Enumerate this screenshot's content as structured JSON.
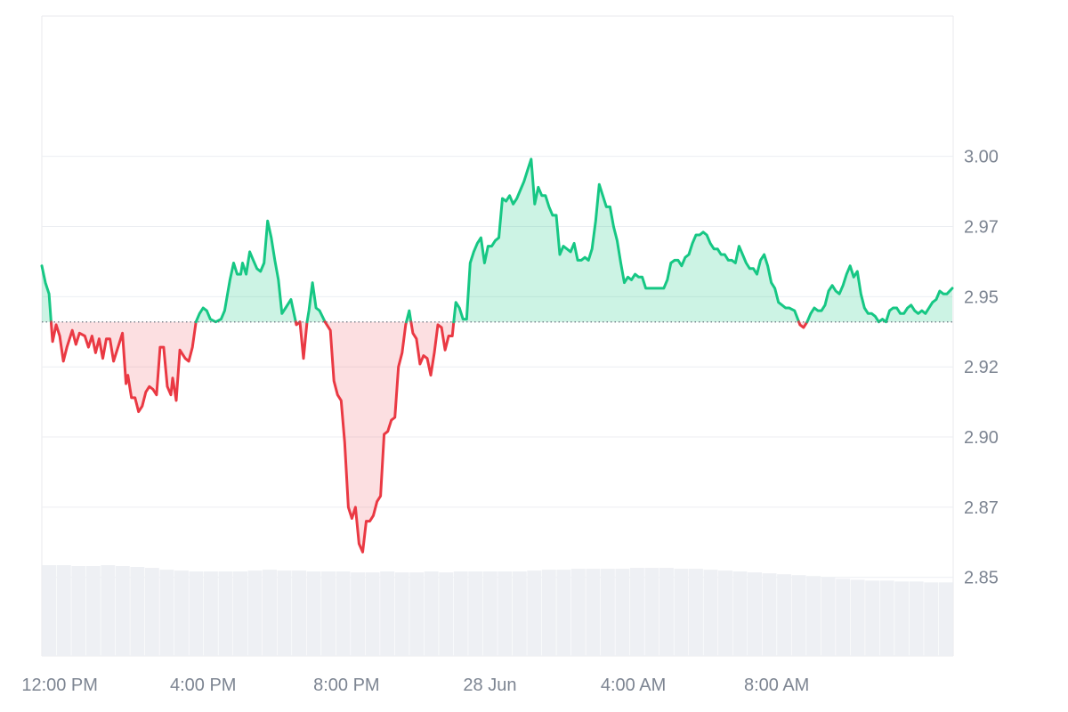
{
  "chart_data": {
    "type": "area",
    "baseline": 2.941,
    "ylim": [
      2.822,
      3.05
    ],
    "yticks": [
      3.0,
      2.975,
      2.95,
      2.925,
      2.9,
      2.875,
      2.85
    ],
    "ytick_labels": [
      "3.00",
      "2.97",
      "2.95",
      "2.92",
      "2.90",
      "2.87",
      "2.85"
    ],
    "x_range_hours": [
      -0.5,
      24.9
    ],
    "xticks": [
      {
        "at": 0,
        "label": "12:00 PM"
      },
      {
        "at": 4,
        "label": "4:00 PM"
      },
      {
        "at": 8,
        "label": "8:00 PM"
      },
      {
        "at": 12,
        "label": "28 Jun"
      },
      {
        "at": 16,
        "label": "4:00 AM"
      },
      {
        "at": 20,
        "label": "8:00 AM"
      }
    ],
    "colors": {
      "up": "#16c784",
      "down": "#ea3943",
      "up_fill": "rgba(22,199,132,0.22)",
      "down_fill": "rgba(234,57,67,0.16)"
    },
    "series": [
      {
        "values": [
          [
            -0.5,
            2.961
          ],
          [
            -0.4,
            2.955
          ],
          [
            -0.3,
            2.951
          ],
          [
            -0.2,
            2.934
          ],
          [
            -0.1,
            2.94
          ],
          [
            0.0,
            2.936
          ],
          [
            0.1,
            2.927
          ],
          [
            0.2,
            2.932
          ],
          [
            0.35,
            2.938
          ],
          [
            0.45,
            2.933
          ],
          [
            0.55,
            2.937
          ],
          [
            0.7,
            2.936
          ],
          [
            0.8,
            2.932
          ],
          [
            0.9,
            2.936
          ],
          [
            1.0,
            2.93
          ],
          [
            1.1,
            2.935
          ],
          [
            1.2,
            2.928
          ],
          [
            1.3,
            2.935
          ],
          [
            1.4,
            2.935
          ],
          [
            1.5,
            2.927
          ],
          [
            1.6,
            2.931
          ],
          [
            1.75,
            2.937
          ],
          [
            1.85,
            2.919
          ],
          [
            1.9,
            2.922
          ],
          [
            2.0,
            2.914
          ],
          [
            2.1,
            2.914
          ],
          [
            2.2,
            2.909
          ],
          [
            2.3,
            2.911
          ],
          [
            2.4,
            2.916
          ],
          [
            2.5,
            2.918
          ],
          [
            2.6,
            2.917
          ],
          [
            2.7,
            2.915
          ],
          [
            2.8,
            2.932
          ],
          [
            2.9,
            2.932
          ],
          [
            3.0,
            2.918
          ],
          [
            3.1,
            2.915
          ],
          [
            3.15,
            2.921
          ],
          [
            3.25,
            2.913
          ],
          [
            3.35,
            2.931
          ],
          [
            3.5,
            2.928
          ],
          [
            3.6,
            2.927
          ],
          [
            3.7,
            2.932
          ],
          [
            3.8,
            2.941
          ],
          [
            3.9,
            2.944
          ],
          [
            4.0,
            2.946
          ],
          [
            4.1,
            2.945
          ],
          [
            4.2,
            2.942
          ],
          [
            4.35,
            2.941
          ],
          [
            4.5,
            2.942
          ],
          [
            4.6,
            2.945
          ],
          [
            4.75,
            2.956
          ],
          [
            4.85,
            2.962
          ],
          [
            4.95,
            2.958
          ],
          [
            5.05,
            2.958
          ],
          [
            5.1,
            2.962
          ],
          [
            5.2,
            2.958
          ],
          [
            5.3,
            2.966
          ],
          [
            5.4,
            2.963
          ],
          [
            5.5,
            2.96
          ],
          [
            5.6,
            2.959
          ],
          [
            5.7,
            2.962
          ],
          [
            5.8,
            2.977
          ],
          [
            5.9,
            2.971
          ],
          [
            6.0,
            2.963
          ],
          [
            6.1,
            2.956
          ],
          [
            6.2,
            2.944
          ],
          [
            6.3,
            2.946
          ],
          [
            6.45,
            2.949
          ],
          [
            6.6,
            2.94
          ],
          [
            6.7,
            2.941
          ],
          [
            6.8,
            2.928
          ],
          [
            6.9,
            2.941
          ],
          [
            6.95,
            2.945
          ],
          [
            7.05,
            2.955
          ],
          [
            7.15,
            2.946
          ],
          [
            7.25,
            2.945
          ],
          [
            7.4,
            2.941
          ],
          [
            7.55,
            2.938
          ],
          [
            7.65,
            2.92
          ],
          [
            7.75,
            2.915
          ],
          [
            7.85,
            2.913
          ],
          [
            7.95,
            2.898
          ],
          [
            8.05,
            2.875
          ],
          [
            8.15,
            2.871
          ],
          [
            8.25,
            2.875
          ],
          [
            8.35,
            2.862
          ],
          [
            8.45,
            2.859
          ],
          [
            8.55,
            2.87
          ],
          [
            8.65,
            2.87
          ],
          [
            8.75,
            2.872
          ],
          [
            8.85,
            2.877
          ],
          [
            8.95,
            2.879
          ],
          [
            9.05,
            2.901
          ],
          [
            9.15,
            2.902
          ],
          [
            9.25,
            2.906
          ],
          [
            9.35,
            2.907
          ],
          [
            9.45,
            2.925
          ],
          [
            9.55,
            2.93
          ],
          [
            9.65,
            2.94
          ],
          [
            9.75,
            2.945
          ],
          [
            9.85,
            2.937
          ],
          [
            9.95,
            2.935
          ],
          [
            10.05,
            2.926
          ],
          [
            10.15,
            2.929
          ],
          [
            10.25,
            2.928
          ],
          [
            10.35,
            2.922
          ],
          [
            10.45,
            2.93
          ],
          [
            10.55,
            2.94
          ],
          [
            10.65,
            2.939
          ],
          [
            10.75,
            2.931
          ],
          [
            10.85,
            2.936
          ],
          [
            10.95,
            2.936
          ],
          [
            11.05,
            2.948
          ],
          [
            11.15,
            2.946
          ],
          [
            11.25,
            2.942
          ],
          [
            11.35,
            2.942
          ],
          [
            11.45,
            2.962
          ],
          [
            11.55,
            2.966
          ],
          [
            11.65,
            2.969
          ],
          [
            11.75,
            2.971
          ],
          [
            11.85,
            2.962
          ],
          [
            11.95,
            2.968
          ],
          [
            12.05,
            2.968
          ],
          [
            12.15,
            2.97
          ],
          [
            12.25,
            2.971
          ],
          [
            12.35,
            2.985
          ],
          [
            12.45,
            2.984
          ],
          [
            12.55,
            2.986
          ],
          [
            12.65,
            2.983
          ],
          [
            12.75,
            2.985
          ],
          [
            12.85,
            2.988
          ],
          [
            12.95,
            2.991
          ],
          [
            13.05,
            2.995
          ],
          [
            13.15,
            2.999
          ],
          [
            13.25,
            2.983
          ],
          [
            13.35,
            2.989
          ],
          [
            13.45,
            2.986
          ],
          [
            13.55,
            2.986
          ],
          [
            13.65,
            2.982
          ],
          [
            13.75,
            2.979
          ],
          [
            13.85,
            2.979
          ],
          [
            13.95,
            2.965
          ],
          [
            14.05,
            2.968
          ],
          [
            14.15,
            2.967
          ],
          [
            14.25,
            2.966
          ],
          [
            14.35,
            2.969
          ],
          [
            14.45,
            2.963
          ],
          [
            14.55,
            2.963
          ],
          [
            14.65,
            2.964
          ],
          [
            14.75,
            2.963
          ],
          [
            14.85,
            2.967
          ],
          [
            14.95,
            2.977
          ],
          [
            15.05,
            2.99
          ],
          [
            15.15,
            2.986
          ],
          [
            15.25,
            2.982
          ],
          [
            15.35,
            2.982
          ],
          [
            15.45,
            2.975
          ],
          [
            15.55,
            2.97
          ],
          [
            15.65,
            2.962
          ],
          [
            15.75,
            2.955
          ],
          [
            15.85,
            2.957
          ],
          [
            15.95,
            2.956
          ],
          [
            16.05,
            2.958
          ],
          [
            16.15,
            2.957
          ],
          [
            16.25,
            2.957
          ],
          [
            16.35,
            2.953
          ],
          [
            16.45,
            2.953
          ],
          [
            16.55,
            2.953
          ],
          [
            16.65,
            2.953
          ],
          [
            16.75,
            2.953
          ],
          [
            16.85,
            2.953
          ],
          [
            16.95,
            2.956
          ],
          [
            17.05,
            2.962
          ],
          [
            17.15,
            2.963
          ],
          [
            17.25,
            2.963
          ],
          [
            17.35,
            2.961
          ],
          [
            17.45,
            2.964
          ],
          [
            17.55,
            2.965
          ],
          [
            17.65,
            2.969
          ],
          [
            17.75,
            2.972
          ],
          [
            17.85,
            2.972
          ],
          [
            17.95,
            2.973
          ],
          [
            18.05,
            2.972
          ],
          [
            18.15,
            2.969
          ],
          [
            18.25,
            2.967
          ],
          [
            18.35,
            2.967
          ],
          [
            18.45,
            2.965
          ],
          [
            18.55,
            2.965
          ],
          [
            18.65,
            2.963
          ],
          [
            18.75,
            2.963
          ],
          [
            18.85,
            2.962
          ],
          [
            18.95,
            2.968
          ],
          [
            19.05,
            2.965
          ],
          [
            19.15,
            2.962
          ],
          [
            19.25,
            2.96
          ],
          [
            19.35,
            2.96
          ],
          [
            19.45,
            2.958
          ],
          [
            19.55,
            2.963
          ],
          [
            19.65,
            2.965
          ],
          [
            19.75,
            2.961
          ],
          [
            19.85,
            2.955
          ],
          [
            19.95,
            2.953
          ],
          [
            20.05,
            2.948
          ],
          [
            20.15,
            2.947
          ],
          [
            20.25,
            2.946
          ],
          [
            20.35,
            2.946
          ],
          [
            20.5,
            2.945
          ],
          [
            20.65,
            2.94
          ],
          [
            20.75,
            2.939
          ],
          [
            20.85,
            2.941
          ],
          [
            20.95,
            2.944
          ],
          [
            21.05,
            2.946
          ],
          [
            21.15,
            2.945
          ],
          [
            21.25,
            2.945
          ],
          [
            21.35,
            2.947
          ],
          [
            21.45,
            2.952
          ],
          [
            21.55,
            2.954
          ],
          [
            21.65,
            2.952
          ],
          [
            21.75,
            2.951
          ],
          [
            21.85,
            2.954
          ],
          [
            21.95,
            2.958
          ],
          [
            22.05,
            2.961
          ],
          [
            22.15,
            2.957
          ],
          [
            22.25,
            2.959
          ],
          [
            22.35,
            2.951
          ],
          [
            22.45,
            2.946
          ],
          [
            22.55,
            2.944
          ],
          [
            22.65,
            2.944
          ],
          [
            22.75,
            2.943
          ],
          [
            22.85,
            2.941
          ],
          [
            22.95,
            2.942
          ],
          [
            23.05,
            2.941
          ],
          [
            23.15,
            2.945
          ],
          [
            23.25,
            2.946
          ],
          [
            23.35,
            2.946
          ],
          [
            23.45,
            2.944
          ],
          [
            23.55,
            2.944
          ],
          [
            23.65,
            2.946
          ],
          [
            23.75,
            2.947
          ],
          [
            23.85,
            2.945
          ],
          [
            23.95,
            2.944
          ],
          [
            24.05,
            2.945
          ],
          [
            24.15,
            2.944
          ],
          [
            24.25,
            2.946
          ],
          [
            24.35,
            2.948
          ],
          [
            24.45,
            2.949
          ],
          [
            24.55,
            2.952
          ],
          [
            24.65,
            2.951
          ],
          [
            24.75,
            2.951
          ],
          [
            24.9,
            2.953
          ]
        ]
      }
    ],
    "volume_relative": [
      1.0,
      1.0,
      0.99,
      0.99,
      1.0,
      0.99,
      0.98,
      0.97,
      0.95,
      0.94,
      0.93,
      0.93,
      0.93,
      0.93,
      0.94,
      0.95,
      0.94,
      0.94,
      0.93,
      0.93,
      0.93,
      0.92,
      0.92,
      0.93,
      0.92,
      0.92,
      0.93,
      0.92,
      0.93,
      0.93,
      0.93,
      0.93,
      0.93,
      0.94,
      0.95,
      0.95,
      0.96,
      0.96,
      0.96,
      0.96,
      0.97,
      0.97,
      0.97,
      0.96,
      0.96,
      0.95,
      0.94,
      0.93,
      0.92,
      0.91,
      0.9,
      0.89,
      0.88,
      0.87,
      0.85,
      0.84,
      0.83,
      0.83,
      0.82,
      0.82,
      0.81,
      0.81
    ],
    "grid": true
  }
}
